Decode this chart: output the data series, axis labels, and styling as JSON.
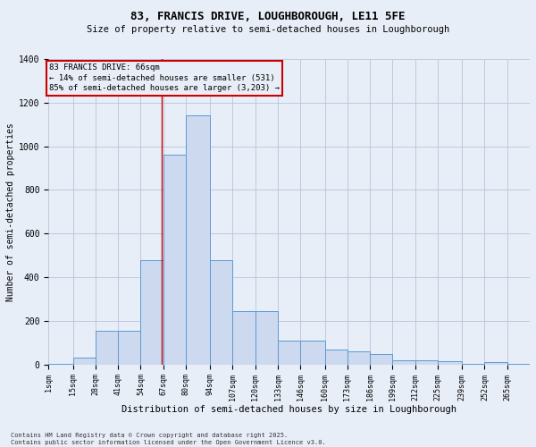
{
  "title": "83, FRANCIS DRIVE, LOUGHBOROUGH, LE11 5FE",
  "subtitle": "Size of property relative to semi-detached houses in Loughborough",
  "xlabel": "Distribution of semi-detached houses by size in Loughborough",
  "ylabel": "Number of semi-detached properties",
  "footer_line1": "Contains HM Land Registry data © Crown copyright and database right 2025.",
  "footer_line2": "Contains public sector information licensed under the Open Government Licence v3.0.",
  "annotation_title": "83 FRANCIS DRIVE: 66sqm",
  "annotation_line1": "← 14% of semi-detached houses are smaller (531)",
  "annotation_line2": "85% of semi-detached houses are larger (3,203) →",
  "property_size": 66,
  "bar_edge_values": [
    1,
    15,
    28,
    41,
    54,
    67,
    80,
    94,
    107,
    120,
    133,
    146,
    160,
    173,
    186,
    199,
    212,
    225,
    239,
    252,
    265
  ],
  "bar_heights": [
    5,
    30,
    155,
    155,
    480,
    960,
    1140,
    480,
    245,
    245,
    110,
    110,
    70,
    60,
    50,
    20,
    20,
    15,
    5,
    10,
    3
  ],
  "bar_color": "#ccd9ee",
  "bar_edge_color": "#5b9bd5",
  "grid_color": "#b8c4d8",
  "background_color": "#e8eef8",
  "vline_color": "#cc0000",
  "annotation_box_color": "#cc0000",
  "ylim": [
    0,
    1400
  ],
  "yticks": [
    0,
    200,
    400,
    600,
    800,
    1000,
    1200,
    1400
  ],
  "title_fontsize": 9,
  "subtitle_fontsize": 7.5,
  "xlabel_fontsize": 7.5,
  "ylabel_fontsize": 7,
  "xtick_fontsize": 6,
  "ytick_fontsize": 7,
  "footer_fontsize": 5,
  "annotation_fontsize": 6.5
}
